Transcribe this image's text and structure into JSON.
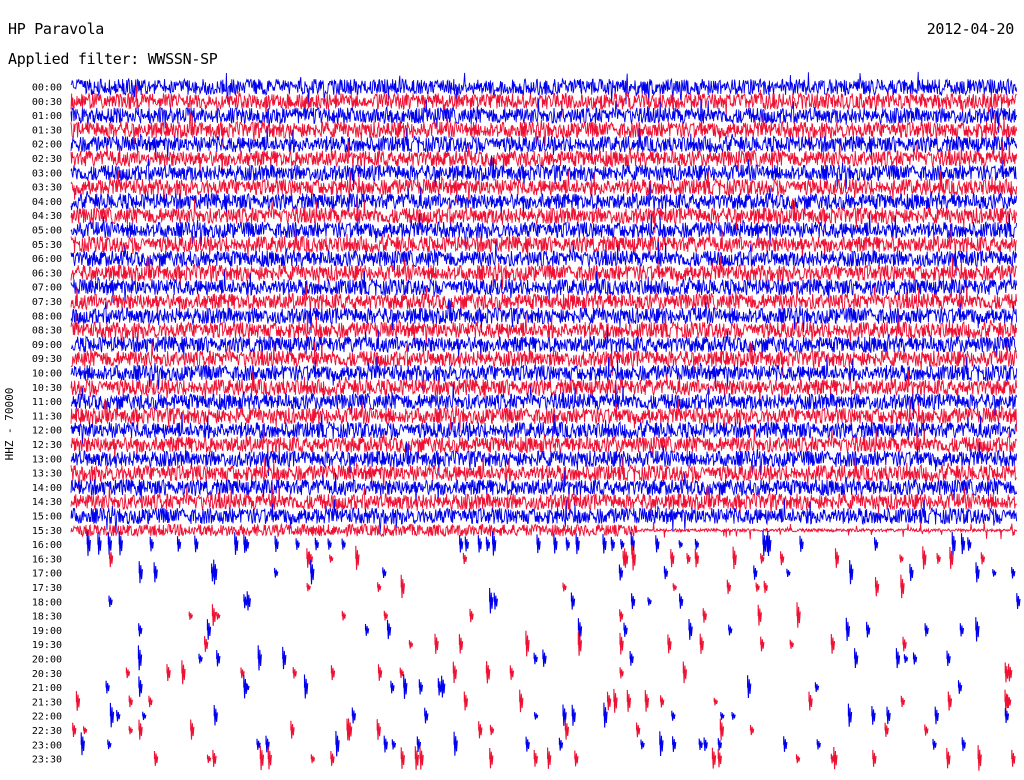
{
  "header": {
    "station": "HP Paravola",
    "date": "2012-04-20",
    "filter": "Applied filter: WWSSN-SP"
  },
  "chart_data": {
    "type": "helicorder",
    "channel_label": "HHZ - 70000",
    "ylabels": [
      "00:00",
      "00:30",
      "01:00",
      "01:30",
      "02:00",
      "02:30",
      "03:00",
      "03:30",
      "04:00",
      "04:30",
      "05:00",
      "05:30",
      "06:00",
      "06:30",
      "07:00",
      "07:30",
      "08:00",
      "08:30",
      "09:00",
      "09:30",
      "10:00",
      "10:30",
      "11:00",
      "11:30",
      "12:00",
      "12:30",
      "13:00",
      "13:30",
      "14:00",
      "14:30",
      "15:00",
      "15:30",
      "16:00",
      "16:30",
      "17:00",
      "17:30",
      "18:00",
      "18:30",
      "19:00",
      "19:30",
      "20:00",
      "20:30",
      "21:00",
      "21:30",
      "22:00",
      "22:30",
      "23:00",
      "23:30"
    ],
    "series_colors": [
      "#0000ee",
      "#ee1133"
    ],
    "trace_minutes_per_line": 30,
    "recorded_through": "16:00",
    "activity": [
      1.0,
      1.0,
      1.0,
      1.0,
      1.0,
      1.0,
      1.0,
      1.0,
      1.0,
      1.0,
      1.0,
      1.0,
      1.0,
      1.0,
      1.0,
      1.0,
      1.0,
      1.0,
      1.0,
      1.0,
      1.0,
      1.0,
      1.0,
      1.0,
      1.0,
      1.0,
      1.0,
      1.0,
      1.0,
      1.0,
      1.0,
      0.55,
      0.15,
      0.08,
      0.06,
      0.04,
      0.04,
      0.04,
      0.05,
      0.05,
      0.05,
      0.06,
      0.05,
      0.06,
      0.07,
      0.07,
      0.08,
      0.09
    ]
  }
}
